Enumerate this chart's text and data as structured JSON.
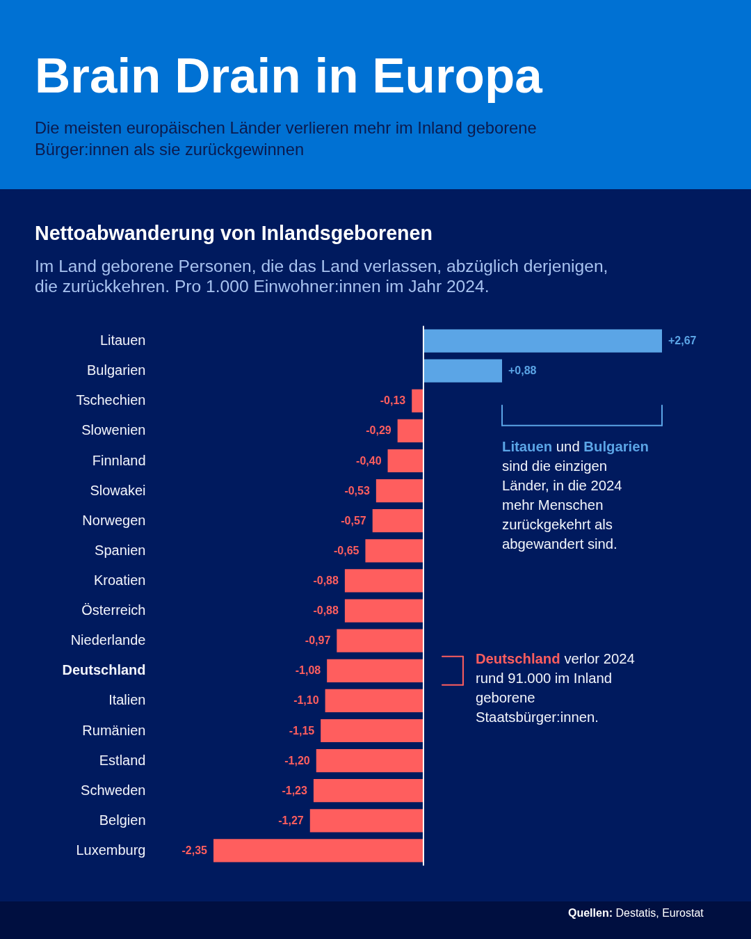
{
  "chart_data": {
    "type": "bar",
    "orientation": "horizontal",
    "title": "Brain Drain in Europa",
    "subtitle": "Die meisten europäischen Länder verlieren mehr im Inland geborene Bürger:innen als sie zurückgewinnen",
    "annotations": [
      "Nettoabwanderung von Inlandsgeborenen",
      "Im Land geborene Personen, die das Land verlassen, abzüglich derjenigen, die zurückkehren. Pro 1.000 Einwohner:innen im Jahr 2024.",
      "Litauen und Bulgarien sind die einzigen Länder, in die 2024 mehr Menschen zurückgekehrt als abgewandert sind.",
      "Deutschland verlor 2024 rund 91.000 im Inland geborene Staatsbürger:innen.",
      "Quellen: Destatis, Eurostat"
    ],
    "categories": [
      "Litauen",
      "Bulgarien",
      "Tschechien",
      "Slowenien",
      "Finnland",
      "Slowakei",
      "Norwegen",
      "Spanien",
      "Kroatien",
      "Österreich",
      "Niederlande",
      "Deutschland",
      "Italien",
      "Rumänien",
      "Estland",
      "Schweden",
      "Belgien",
      "Luxemburg"
    ],
    "values": [
      2.67,
      0.88,
      -0.13,
      -0.29,
      -0.4,
      -0.53,
      -0.57,
      -0.65,
      -0.88,
      -0.88,
      -0.97,
      -1.08,
      -1.1,
      -1.15,
      -1.2,
      -1.23,
      -1.27,
      -2.35
    ],
    "colors": [
      "#5ba5e6",
      "#5ba5e6",
      "#ff5e5e",
      "#ff5e5e",
      "#ff5e5e",
      "#ff5e5e",
      "#ff5e5e",
      "#ff5e5e",
      "#ff5e5e",
      "#ff5e5e",
      "#ff5e5e",
      "#ff5e5e",
      "#ff5e5e",
      "#ff5e5e",
      "#ff5e5e",
      "#ff5e5e",
      "#ff5e5e",
      "#ff5e5e"
    ],
    "value_labels": [
      "+2,67",
      "+0,88",
      "-0,13",
      "-0,29",
      "-0,40",
      "-0,53",
      "-0,57",
      "-0,65",
      "-0,88",
      "-0,88",
      "-0,97",
      "-1,08",
      "-1,10",
      "-1,15",
      "-1,20",
      "-1,23",
      "-1,27",
      "-2,35"
    ],
    "ref_lines": [
      {
        "axis": "x",
        "value": 0,
        "color": "#ffffff"
      }
    ]
  }
}
